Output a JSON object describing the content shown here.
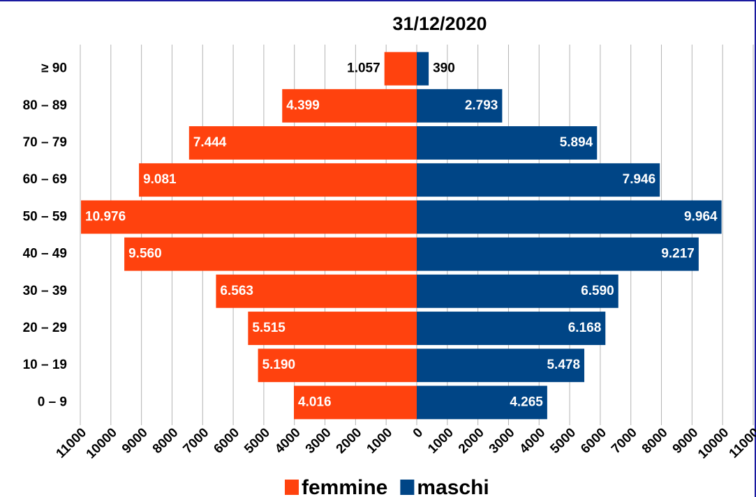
{
  "chart_data": {
    "type": "bar",
    "orientation": "horizontal",
    "title": "31/12/2020",
    "categories": [
      "≥ 90",
      "80 – 89",
      "70 – 79",
      "60 – 69",
      "50 – 59",
      "40 – 49",
      "30 – 39",
      "20 – 29",
      "10 – 19",
      "0 – 9"
    ],
    "series": [
      {
        "name": "femmine",
        "color": "#ff420e",
        "values": [
          -1057,
          -4399,
          -7444,
          -9081,
          -10976,
          -9560,
          -6563,
          -5515,
          -5190,
          -4016
        ],
        "value_labels": [
          "1.057",
          "4.399",
          "7.444",
          "9.081",
          "10.976",
          "9.560",
          "6.563",
          "5.515",
          "5.190",
          "4.016"
        ]
      },
      {
        "name": "maschi",
        "color": "#004586",
        "values": [
          390,
          2793,
          5894,
          7946,
          9964,
          9217,
          6590,
          6168,
          5478,
          4265
        ],
        "value_labels": [
          "390",
          "2.793",
          "5.894",
          "7.946",
          "9.964",
          "9.217",
          "6.590",
          "6.168",
          "5.478",
          "4.265"
        ]
      }
    ],
    "xlim": [
      -11000,
      11000
    ],
    "xticks": [
      {
        "value": -11000,
        "label": "11000"
      },
      {
        "value": -10000,
        "label": "10000"
      },
      {
        "value": -9000,
        "label": "9000"
      },
      {
        "value": -8000,
        "label": "8000"
      },
      {
        "value": -7000,
        "label": "7000"
      },
      {
        "value": -6000,
        "label": "6000"
      },
      {
        "value": -5000,
        "label": "5000"
      },
      {
        "value": -4000,
        "label": "4000"
      },
      {
        "value": -3000,
        "label": "3000"
      },
      {
        "value": -2000,
        "label": "2000"
      },
      {
        "value": -1000,
        "label": "1000"
      },
      0,
      1000,
      2000,
      3000,
      4000,
      5000,
      6000,
      7000,
      8000,
      9000,
      10000,
      11000
    ],
    "grid": true,
    "legend": "bottom"
  }
}
